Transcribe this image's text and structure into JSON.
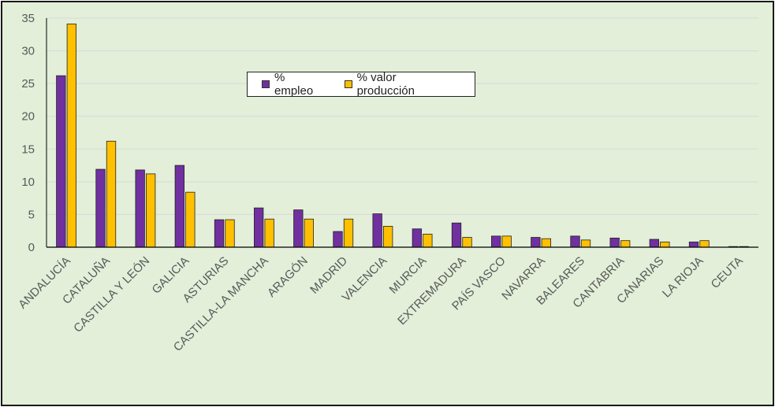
{
  "chart_data": {
    "type": "bar",
    "title": "",
    "xlabel": "",
    "ylabel": "",
    "ylim": [
      0,
      35
    ],
    "yticks": [
      0,
      5,
      10,
      15,
      20,
      25,
      30,
      35
    ],
    "grid": true,
    "legend_position": "top-center",
    "categories": [
      "ANDALUCÍA",
      "CATALUÑA",
      "CASTILLA Y LEÓN",
      "GALICIA",
      "ASTURIAS",
      "CASTILLA-LA MANCHA",
      "ARAGÓN",
      "MADRID",
      "VALENCIA",
      "MURCIA",
      "EXTREMADURA",
      "PAÍS VASCO",
      "NAVARRA",
      "BALEARES",
      "CANTABRIA",
      "CANARIAS",
      "LA RIOJA",
      "CEUTA"
    ],
    "series": [
      {
        "name": "% empleo",
        "color": "#7030a0",
        "values": [
          26.2,
          11.9,
          11.8,
          12.5,
          4.2,
          6.0,
          5.7,
          2.4,
          5.1,
          2.8,
          3.7,
          1.7,
          1.5,
          1.7,
          1.4,
          1.2,
          0.8,
          0.1
        ]
      },
      {
        "name": "% valor producción",
        "color": "#ffc000",
        "values": [
          34.1,
          16.2,
          11.2,
          8.4,
          4.2,
          4.3,
          4.3,
          4.3,
          3.2,
          2.0,
          1.5,
          1.7,
          1.3,
          1.1,
          1.0,
          0.8,
          1.0,
          0.1
        ]
      }
    ]
  }
}
